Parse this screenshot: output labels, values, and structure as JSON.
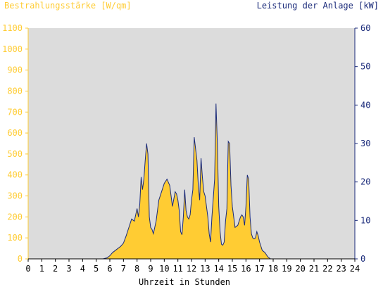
{
  "colors": {
    "left_axis": "#ffcc33",
    "right_axis": "#1a2a7a",
    "plot_bg": "#dcdcdc",
    "fill": "#ffcc33",
    "line": "#1a2a7a",
    "text": "#000000"
  },
  "chart_data": {
    "type": "area",
    "left_title": "Bestrahlungsstärke [W/qm]",
    "right_title": "Leistung der Anlage [kW]",
    "xlabel": "Uhrzeit in Stunden",
    "xlim": [
      0,
      24
    ],
    "ylim_left": [
      0,
      1100
    ],
    "ylim_right": [
      0,
      60
    ],
    "x_ticks": [
      "0",
      "1",
      "2",
      "3",
      "4",
      "5",
      "6",
      "7",
      "8",
      "9",
      "10",
      "11",
      "12",
      "13",
      "14",
      "15",
      "16",
      "17",
      "18",
      "19",
      "20",
      "21",
      "22",
      "23",
      "24"
    ],
    "y_left_ticks": [
      "0",
      "100",
      "200",
      "300",
      "400",
      "500",
      "600",
      "700",
      "800",
      "900",
      "1000",
      "1100"
    ],
    "y_right_ticks": [
      "0",
      "10",
      "20",
      "30",
      "40",
      "50",
      "60"
    ],
    "grid": false,
    "series": [
      {
        "name": "Bestrahlungsstärke",
        "axis": "left",
        "x": [
          0,
          5.5,
          5.8,
          6.0,
          6.2,
          6.5,
          6.8,
          7.0,
          7.2,
          7.4,
          7.6,
          7.8,
          8.0,
          8.1,
          8.2,
          8.3,
          8.4,
          8.5,
          8.6,
          8.7,
          8.8,
          8.9,
          9.0,
          9.1,
          9.2,
          9.4,
          9.6,
          9.8,
          10.0,
          10.2,
          10.4,
          10.6,
          10.8,
          10.9,
          11.0,
          11.1,
          11.2,
          11.3,
          11.4,
          11.5,
          11.6,
          11.7,
          11.8,
          11.9,
          12.0,
          12.1,
          12.2,
          12.4,
          12.5,
          12.6,
          12.7,
          12.8,
          12.9,
          13.0,
          13.1,
          13.2,
          13.3,
          13.4,
          13.5,
          13.6,
          13.7,
          13.8,
          13.9,
          14.0,
          14.1,
          14.2,
          14.3,
          14.4,
          14.5,
          14.6,
          14.7,
          14.8,
          14.9,
          15.0,
          15.2,
          15.4,
          15.5,
          15.6,
          15.7,
          15.8,
          15.9,
          16.0,
          16.1,
          16.2,
          16.3,
          16.4,
          16.5,
          16.6,
          16.7,
          16.8,
          16.9,
          17.0,
          17.1,
          17.2,
          17.3,
          17.4,
          17.5,
          17.6,
          17.7,
          17.8,
          17.9,
          18.0,
          18.1,
          18.2,
          18.3,
          18.5,
          18.7,
          18.9,
          19.0,
          19.2,
          19.5,
          24
        ],
        "values": [
          0,
          0,
          5,
          15,
          30,
          45,
          60,
          75,
          110,
          150,
          190,
          180,
          240,
          200,
          260,
          390,
          330,
          380,
          470,
          550,
          500,
          200,
          150,
          140,
          120,
          180,
          280,
          320,
          360,
          380,
          350,
          250,
          320,
          310,
          280,
          230,
          130,
          115,
          200,
          330,
          230,
          200,
          190,
          210,
          280,
          330,
          580,
          470,
          350,
          280,
          480,
          390,
          320,
          300,
          250,
          200,
          120,
          80,
          200,
          290,
          380,
          740,
          550,
          250,
          130,
          70,
          65,
          80,
          180,
          240,
          560,
          550,
          350,
          250,
          150,
          160,
          180,
          200,
          210,
          200,
          160,
          250,
          400,
          380,
          200,
          120,
          100,
          95,
          100,
          130,
          110,
          80,
          60,
          40,
          35,
          30,
          20,
          10,
          5,
          0,
          0,
          0,
          0,
          0,
          0,
          0,
          0,
          0,
          0,
          0,
          0,
          0
        ]
      }
    ]
  }
}
